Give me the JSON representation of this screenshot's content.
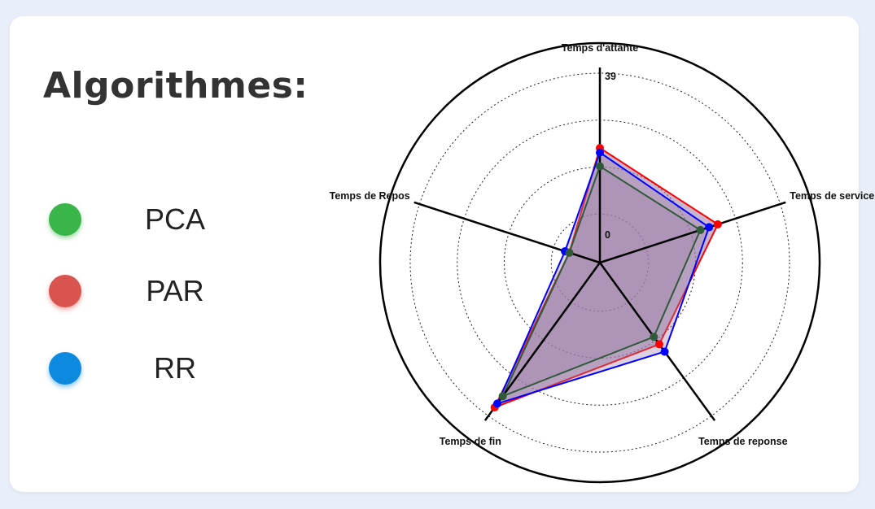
{
  "legend": {
    "title": "Algorithmes:",
    "items": [
      {
        "label": "PCA",
        "color": "#3ab54a"
      },
      {
        "label": "PAR",
        "color": "#d9534f"
      },
      {
        "label": "RR",
        "color": "#0d8ae0"
      }
    ]
  },
  "chart_data": {
    "type": "radar",
    "axes": [
      "Temps d'attante",
      "Temps de service",
      "Temps de reponse",
      "Temps de fin",
      "Temps de Repos"
    ],
    "range": [
      0,
      39
    ],
    "tick_labels": [
      "0",
      "39"
    ],
    "grid_rings": 4,
    "grid_style": "dotted",
    "fill_color": "#9b7aa6",
    "series": [
      {
        "name": "PAR",
        "stroke": "#ff0000",
        "values": [
          25,
          27,
          22,
          39,
          7
        ]
      },
      {
        "name": "RR",
        "stroke": "#0000ff",
        "values": [
          24,
          25,
          24,
          38,
          8
        ]
      },
      {
        "name": "PCA",
        "stroke": "#2f5a3a",
        "values": [
          21,
          23,
          20,
          36,
          7
        ]
      }
    ]
  }
}
